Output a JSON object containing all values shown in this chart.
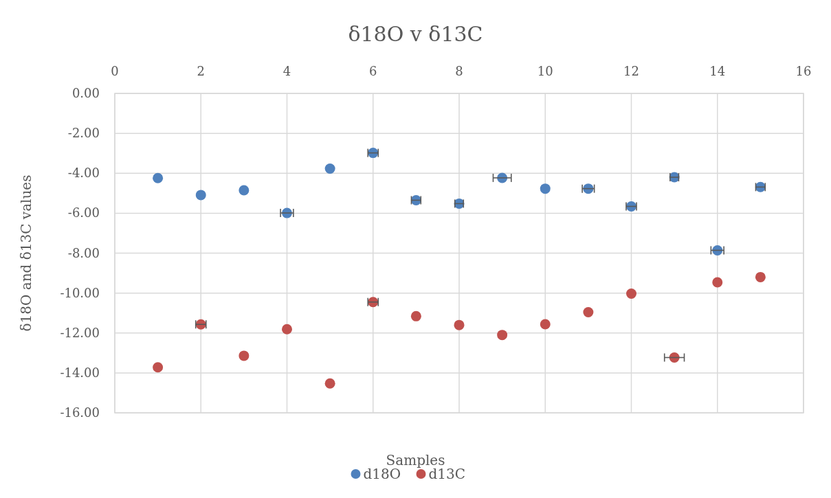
{
  "chart_data": {
    "type": "scatter",
    "title": "δ18O v δ13C",
    "xlabel": "Samples",
    "ylabel": "δ18O and δ13C values",
    "x": [
      1,
      2,
      3,
      4,
      5,
      6,
      7,
      8,
      9,
      10,
      11,
      12,
      13,
      14,
      15
    ],
    "series": [
      {
        "name": "d18O",
        "color": "#4f81bd",
        "values": [
          -4.24,
          -5.09,
          -4.85,
          -5.99,
          -3.77,
          -2.98,
          -5.35,
          -5.52,
          -4.23,
          -4.77,
          -4.77,
          -5.66,
          -4.2,
          -7.86,
          -4.69
        ],
        "xerrors": [
          null,
          null,
          null,
          0.15,
          null,
          0.12,
          0.11,
          0.1,
          0.21,
          null,
          0.14,
          0.12,
          0.1,
          0.15,
          0.11
        ]
      },
      {
        "name": "d13C",
        "color": "#c0504d",
        "values": [
          -13.72,
          -11.57,
          -13.14,
          -11.81,
          -14.53,
          -10.45,
          -11.16,
          -11.6,
          -12.1,
          -11.56,
          -10.96,
          -10.03,
          -13.23,
          -9.46,
          -9.2
        ],
        "xerrors": [
          null,
          0.12,
          null,
          null,
          null,
          0.12,
          null,
          null,
          null,
          null,
          null,
          null,
          0.23,
          null,
          null
        ]
      }
    ],
    "xlim": [
      0,
      16
    ],
    "xticks": [
      0,
      2,
      4,
      6,
      8,
      10,
      12,
      14,
      16
    ],
    "ylim": [
      -16,
      0
    ],
    "yticks": [
      {
        "value": 0,
        "label": "0.00"
      },
      {
        "value": -2,
        "label": "-2.00"
      },
      {
        "value": -4,
        "label": "-4.00"
      },
      {
        "value": -6,
        "label": "-6.00"
      },
      {
        "value": -8,
        "label": "-8.00"
      },
      {
        "value": -10,
        "label": "-10.00"
      },
      {
        "value": -12,
        "label": "-12.00"
      },
      {
        "value": -14,
        "label": "-14.00"
      },
      {
        "value": -16,
        "label": "-16.00"
      }
    ],
    "grid": true,
    "legend": "bottom",
    "marker": "circle"
  }
}
